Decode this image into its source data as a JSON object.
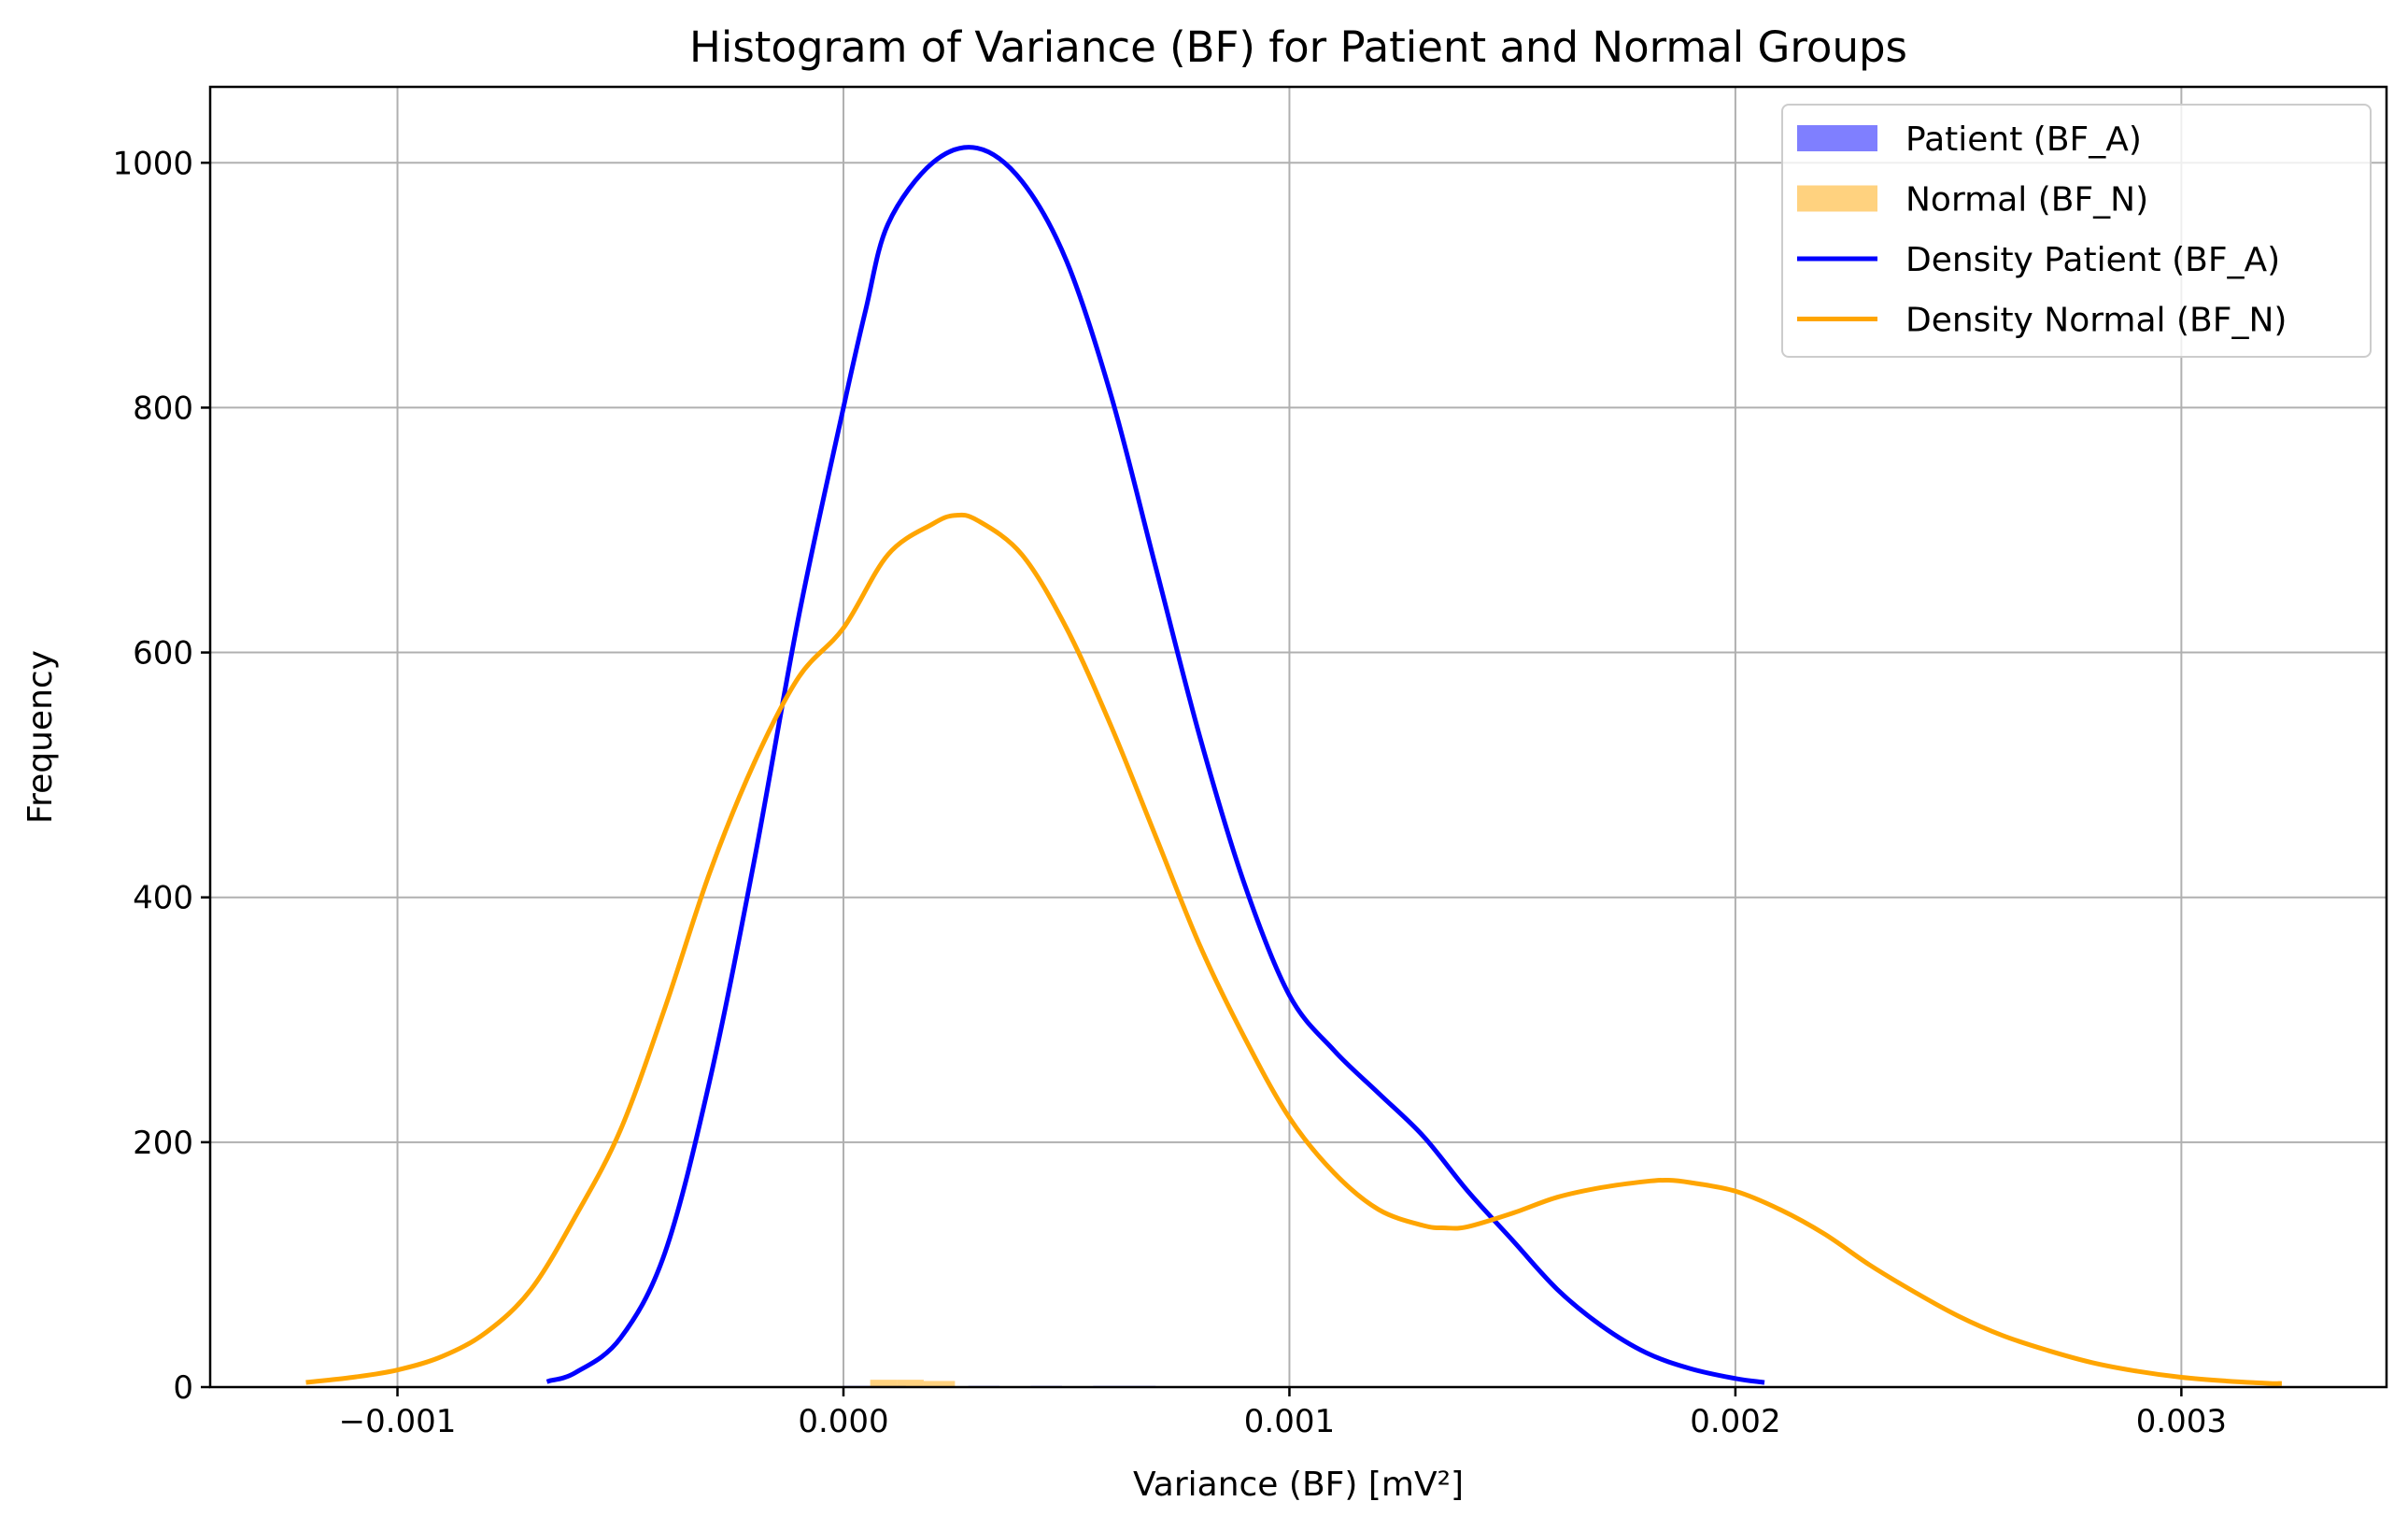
{
  "chart_data": {
    "type": "histogram",
    "title": "Histogram of Variance (BF) for Patient and Normal Groups",
    "xlabel": "Variance (BF) [mV²]",
    "ylabel": "Frequency",
    "xlim": [
      -0.00142,
      0.00346
    ],
    "ylim": [
      0,
      1062
    ],
    "xticks": [
      {
        "value": -0.001,
        "label": "−0.001"
      },
      {
        "value": 0.0,
        "label": "0.000"
      },
      {
        "value": 0.001,
        "label": "0.001"
      },
      {
        "value": 0.002,
        "label": "0.002"
      },
      {
        "value": 0.003,
        "label": "0.003"
      }
    ],
    "yticks": [
      {
        "value": 0,
        "label": "0"
      },
      {
        "value": 200,
        "label": "200"
      },
      {
        "value": 400,
        "label": "400"
      },
      {
        "value": 600,
        "label": "600"
      },
      {
        "value": 800,
        "label": "800"
      },
      {
        "value": 1000,
        "label": "1000"
      }
    ],
    "grid": true,
    "legend_position": "top-right",
    "histograms": [
      {
        "name": "Patient (BF_A)",
        "color": "#0000ff",
        "alpha": 0.5,
        "bins": [
          {
            "x0": 0.0,
            "x1": 7e-05,
            "count": 1
          },
          {
            "x0": 7e-05,
            "x1": 0.00014,
            "count": 1
          },
          {
            "x0": 0.00014,
            "x1": 0.00021,
            "count": 0
          },
          {
            "x0": 0.00021,
            "x1": 0.00028,
            "count": 0
          },
          {
            "x0": 0.00028,
            "x1": 0.00035,
            "count": 1
          },
          {
            "x0": 0.00035,
            "x1": 0.00042,
            "count": 0
          },
          {
            "x0": 0.00042,
            "x1": 0.00049,
            "count": 1
          },
          {
            "x0": 0.00049,
            "x1": 0.00056,
            "count": 0
          },
          {
            "x0": 0.00056,
            "x1": 0.00063,
            "count": 1
          },
          {
            "x0": 0.00063,
            "x1": 0.0007,
            "count": 1
          }
        ]
      },
      {
        "name": "Normal (BF_N)",
        "color": "#ffa500",
        "alpha": 0.5,
        "bins": [
          {
            "x0": 6e-05,
            "x1": 0.00012,
            "count": 6
          },
          {
            "x0": 0.00012,
            "x1": 0.00018,
            "count": 6
          },
          {
            "x0": 0.00018,
            "x1": 0.00025,
            "count": 5
          }
        ]
      }
    ],
    "series": [
      {
        "name": "Density Patient (BF_A)",
        "type": "line",
        "color": "#0000ff",
        "points": [
          [
            -0.00066,
            5
          ],
          [
            -0.0006,
            12
          ],
          [
            -0.0005,
            40
          ],
          [
            -0.0004,
            110
          ],
          [
            -0.0003,
            250
          ],
          [
            -0.0002,
            430
          ],
          [
            -0.0001,
            630
          ],
          [
            0.0,
            800
          ],
          [
            5e-05,
            880
          ],
          [
            0.0001,
            950
          ],
          [
            0.0002,
            1000
          ],
          [
            0.0003,
            1012
          ],
          [
            0.0004,
            985
          ],
          [
            0.0005,
            920
          ],
          [
            0.0006,
            810
          ],
          [
            0.0007,
            670
          ],
          [
            0.0008,
            530
          ],
          [
            0.0009,
            410
          ],
          [
            0.001,
            320
          ],
          [
            0.0011,
            275
          ],
          [
            0.0012,
            240
          ],
          [
            0.0013,
            205
          ],
          [
            0.0014,
            160
          ],
          [
            0.0015,
            120
          ],
          [
            0.0016,
            80
          ],
          [
            0.0017,
            50
          ],
          [
            0.0018,
            28
          ],
          [
            0.0019,
            15
          ],
          [
            0.002,
            7
          ],
          [
            0.00206,
            4
          ]
        ]
      },
      {
        "name": "Density Normal (BF_N)",
        "type": "line",
        "color": "#ffa500",
        "points": [
          [
            -0.0012,
            4
          ],
          [
            -0.0011,
            8
          ],
          [
            -0.001,
            14
          ],
          [
            -0.0009,
            25
          ],
          [
            -0.0008,
            45
          ],
          [
            -0.0007,
            80
          ],
          [
            -0.0006,
            140
          ],
          [
            -0.0005,
            210
          ],
          [
            -0.0004,
            310
          ],
          [
            -0.0003,
            420
          ],
          [
            -0.0002,
            510
          ],
          [
            -0.0001,
            580
          ],
          [
            0.0,
            620
          ],
          [
            0.0001,
            680
          ],
          [
            0.0002,
            705
          ],
          [
            0.00025,
            712
          ],
          [
            0.0003,
            708
          ],
          [
            0.0004,
            680
          ],
          [
            0.0005,
            620
          ],
          [
            0.0006,
            540
          ],
          [
            0.0007,
            450
          ],
          [
            0.0008,
            360
          ],
          [
            0.0009,
            285
          ],
          [
            0.001,
            220
          ],
          [
            0.0011,
            175
          ],
          [
            0.0012,
            145
          ],
          [
            0.0013,
            132
          ],
          [
            0.00135,
            130
          ],
          [
            0.0014,
            131
          ],
          [
            0.0015,
            142
          ],
          [
            0.0016,
            155
          ],
          [
            0.0017,
            163
          ],
          [
            0.0018,
            168
          ],
          [
            0.00185,
            169
          ],
          [
            0.0019,
            167
          ],
          [
            0.002,
            160
          ],
          [
            0.0021,
            145
          ],
          [
            0.0022,
            125
          ],
          [
            0.0023,
            100
          ],
          [
            0.0024,
            78
          ],
          [
            0.0025,
            58
          ],
          [
            0.0026,
            42
          ],
          [
            0.0027,
            30
          ],
          [
            0.0028,
            20
          ],
          [
            0.0029,
            13
          ],
          [
            0.003,
            8
          ],
          [
            0.0031,
            5
          ],
          [
            0.0032,
            3
          ],
          [
            0.00322,
            3
          ]
        ]
      }
    ],
    "legend": [
      {
        "label": "Patient (BF_A)",
        "kind": "patch",
        "color": "#0000ff",
        "alpha": 0.5
      },
      {
        "label": "Normal (BF_N)",
        "kind": "patch",
        "color": "#ffa500",
        "alpha": 0.5
      },
      {
        "label": "Density Patient (BF_A)",
        "kind": "line",
        "color": "#0000ff"
      },
      {
        "label": "Density Normal (BF_N)",
        "kind": "line",
        "color": "#ffa500"
      }
    ]
  }
}
